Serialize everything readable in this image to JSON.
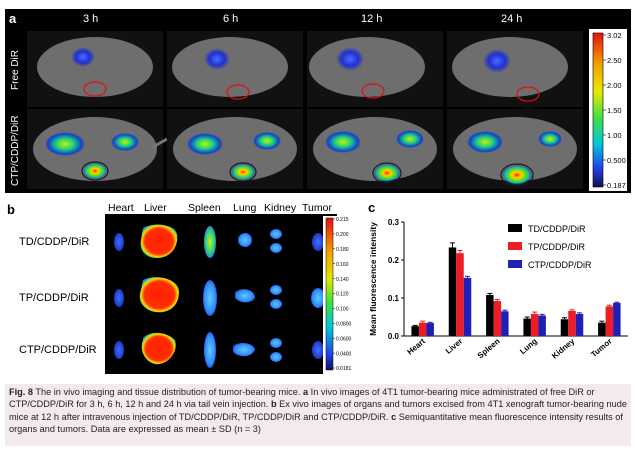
{
  "panel_a": {
    "label": "a",
    "time_points": [
      "3 h",
      "6 h",
      "12 h",
      "24 h"
    ],
    "rows": [
      "Free DiR",
      "CTP/CDDP/DiR"
    ],
    "colorbar_ticks": [
      "3.02",
      "2.50",
      "2.00",
      "1.50",
      "1.00",
      "0.500",
      "0.187"
    ]
  },
  "panel_b": {
    "label": "b",
    "organs": [
      "Heart",
      "Liver",
      "Spleen",
      "Lung",
      "Kidney",
      "Tumor"
    ],
    "groups": [
      "TD/CDDP/DiR",
      "TP/CDDP/DiR",
      "CTP/CDDP/DiR"
    ],
    "colorbar_ticks": [
      "0.215",
      "0.200",
      "0.180",
      "0.160",
      "0.140",
      "0.120",
      "0.100",
      "0.0800",
      "0.0600",
      "0.0400",
      "0.0181"
    ]
  },
  "panel_c": {
    "label": "c"
  },
  "chart_data": {
    "type": "bar",
    "categories": [
      "Heart",
      "Liver",
      "Spleen",
      "Lung",
      "Kidney",
      "Tumor"
    ],
    "series": [
      {
        "name": "TD/CDDP/DiR",
        "color": "#000000",
        "values": [
          0.026,
          0.233,
          0.108,
          0.046,
          0.044,
          0.035
        ],
        "errors": [
          0.002,
          0.012,
          0.004,
          0.004,
          0.004,
          0.004
        ]
      },
      {
        "name": "TP/CDDP/DiR",
        "color": "#ee1c25",
        "values": [
          0.035,
          0.218,
          0.092,
          0.058,
          0.066,
          0.078
        ],
        "errors": [
          0.004,
          0.007,
          0.004,
          0.005,
          0.003,
          0.003
        ]
      },
      {
        "name": "CTP/CDDP/DiR",
        "color": "#1f1fb4",
        "values": [
          0.034,
          0.153,
          0.065,
          0.054,
          0.058,
          0.087
        ],
        "errors": [
          0.002,
          0.004,
          0.003,
          0.003,
          0.003,
          0.002
        ]
      }
    ],
    "ylabel": "Mean fluorescence intensity",
    "ylim": [
      0,
      0.3
    ],
    "yticks": [
      "0.0",
      "0.1",
      "0.2",
      "0.3"
    ],
    "legend_position": "top-right"
  },
  "caption": {
    "fig": "Fig. 8",
    "t1": " The in vivo imaging and tissue distribution of tumor-bearing mice. ",
    "a": "a",
    "t2": " In vivo images of 4T1 tumor-bearing mice administrated of free DiR or CTP/CDDP/DiR for 3 h, 6 h, 12 h and 24 h via tail vein injection. ",
    "b": "b",
    "t3": " Ex vivo images of organs and tumors excised from 4T1 xenograft tumor-bearing nude mice at 12 h after intravenous injection of TD/CDDP/DiR, TP/CDDP/DiR and CTP/CDDP/DiR. ",
    "c": "c",
    "t4": " Semiquantitative mean fluorescence intensity results of organs and tumors. Data are expressed as mean ± SD (n = 3)"
  }
}
